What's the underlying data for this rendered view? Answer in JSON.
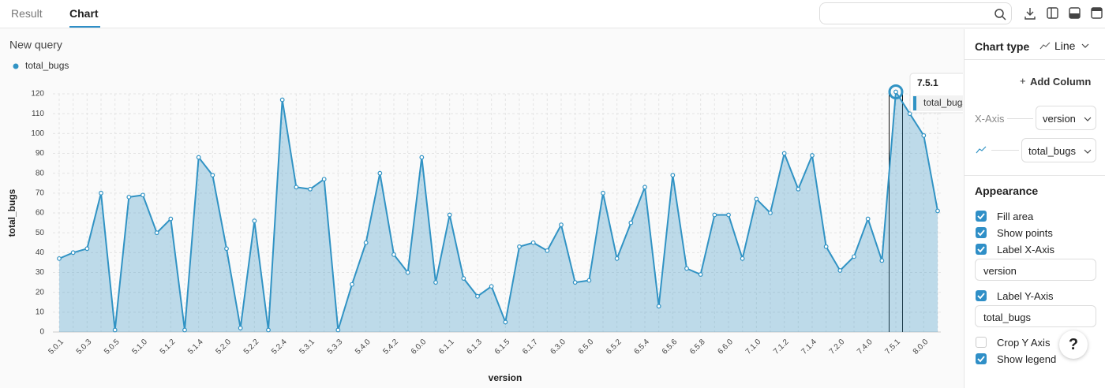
{
  "tabs": [
    "Result",
    "Chart"
  ],
  "chart_data": {
    "type": "line",
    "title": "New query",
    "xlabel": "version",
    "ylabel": "total_bugs",
    "categories": [
      "5.0.1",
      null,
      "5.0.3",
      null,
      "5.0.5",
      null,
      "5.1.0",
      null,
      "5.1.2",
      null,
      "5.1.4",
      null,
      "5.2.0",
      null,
      "5.2.2",
      null,
      "5.2.4",
      null,
      "5.3.1",
      null,
      "5.3.3",
      null,
      "5.4.0",
      null,
      "5.4.2",
      null,
      "6.0.0",
      null,
      "6.1.1",
      null,
      "6.1.3",
      null,
      "6.1.5",
      null,
      "6.1.7",
      null,
      "6.3.0",
      null,
      "6.5.0",
      null,
      "6.5.2",
      null,
      "6.5.4",
      null,
      "6.5.6",
      null,
      "6.5.8",
      null,
      "6.6.0",
      null,
      "7.1.0",
      null,
      "7.1.2",
      null,
      "7.1.4",
      null,
      "7.2.0",
      null,
      "7.4.0",
      null,
      "7.5.1",
      null,
      "8.0.0",
      null
    ],
    "series": [
      {
        "name": "total_bugs",
        "color": "#3193c4",
        "values": [
          37,
          40,
          42,
          70,
          1,
          68,
          69,
          50,
          57,
          1,
          88,
          79,
          42,
          2,
          56,
          1,
          117,
          73,
          72,
          77,
          1,
          24,
          45,
          80,
          39,
          30,
          88,
          25,
          59,
          27,
          18,
          23,
          5,
          43,
          45,
          41,
          54,
          25,
          26,
          70,
          37,
          55,
          73,
          13,
          79,
          32,
          29,
          59,
          59,
          37,
          67,
          60,
          90,
          72,
          89,
          43,
          31,
          38,
          57,
          36,
          121,
          110,
          99,
          61
        ]
      }
    ],
    "ylim": [
      0,
      120
    ],
    "yticks": [
      0,
      10,
      20,
      30,
      40,
      50,
      60,
      70,
      80,
      90,
      100,
      110,
      120
    ],
    "grid": true,
    "fill": true,
    "show_points": true,
    "legend": "top-left",
    "tooltip_index": 60
  },
  "panel": {
    "chart_type_label": "Chart type",
    "chart_type": "Line",
    "add_column": "Add Column",
    "x_axis_label": "X-Axis",
    "x_axis_value": "version",
    "y_series_value": "total_bugs",
    "appearance_title": "Appearance",
    "options": [
      {
        "label": "Fill area",
        "checked": true
      },
      {
        "label": "Show points",
        "checked": true
      },
      {
        "label": "Label X-Axis",
        "checked": true,
        "input": "version"
      },
      {
        "label": "Label Y-Axis",
        "checked": true,
        "input": "total_bugs"
      },
      {
        "label": "Crop Y Axis",
        "checked": false
      },
      {
        "label": "Show legend",
        "checked": true
      }
    ],
    "help": "?"
  }
}
